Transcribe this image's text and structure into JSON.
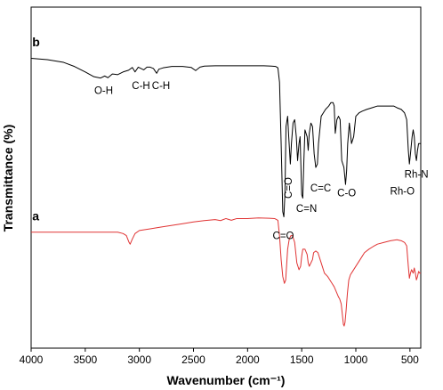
{
  "chart_data": {
    "type": "line",
    "title": "",
    "xlabel": "Wavenumber (cm⁻¹)",
    "ylabel": "Transmittance (%)",
    "xlim": [
      4000,
      400
    ],
    "x_reversed": true,
    "x_ticks": [
      4000,
      3500,
      3000,
      2500,
      2000,
      1500,
      1000,
      500
    ],
    "ylim": [
      0,
      100
    ],
    "y_ticks_shown": false,
    "grid": false,
    "legend": "none",
    "series": [
      {
        "name": "b",
        "color": "#000000",
        "points": [
          [
            4000,
            85
          ],
          [
            3850,
            84.6
          ],
          [
            3700,
            83.8
          ],
          [
            3600,
            82.6
          ],
          [
            3500,
            81
          ],
          [
            3420,
            79.6
          ],
          [
            3360,
            79.2
          ],
          [
            3320,
            79.8
          ],
          [
            3290,
            79.3
          ],
          [
            3250,
            80.4
          ],
          [
            3200,
            80.2
          ],
          [
            3150,
            81
          ],
          [
            3100,
            81.5
          ],
          [
            3065,
            82.3
          ],
          [
            3040,
            81
          ],
          [
            3010,
            82.4
          ],
          [
            2960,
            81.6
          ],
          [
            2930,
            82.4
          ],
          [
            2900,
            82.4
          ],
          [
            2870,
            82
          ],
          [
            2840,
            80.6
          ],
          [
            2820,
            81.8
          ],
          [
            2780,
            82.2
          ],
          [
            2700,
            82.6
          ],
          [
            2600,
            82.6
          ],
          [
            2520,
            82.3
          ],
          [
            2480,
            81.4
          ],
          [
            2440,
            82.4
          ],
          [
            2400,
            82.7
          ],
          [
            2300,
            82.8
          ],
          [
            2200,
            82.8
          ],
          [
            2100,
            82.8
          ],
          [
            2000,
            82.8
          ],
          [
            1900,
            82.8
          ],
          [
            1850,
            82.8
          ],
          [
            1780,
            82.7
          ],
          [
            1740,
            82.6
          ],
          [
            1720,
            82.2
          ],
          [
            1705,
            78
          ],
          [
            1690,
            60
          ],
          [
            1675,
            40
          ],
          [
            1665,
            38.5
          ],
          [
            1655,
            45
          ],
          [
            1645,
            65
          ],
          [
            1630,
            68
          ],
          [
            1620,
            62
          ],
          [
            1605,
            54
          ],
          [
            1595,
            60
          ],
          [
            1580,
            66
          ],
          [
            1565,
            67
          ],
          [
            1550,
            62
          ],
          [
            1538,
            55
          ],
          [
            1525,
            60
          ],
          [
            1515,
            62
          ],
          [
            1500,
            45
          ],
          [
            1490,
            44
          ],
          [
            1480,
            55
          ],
          [
            1470,
            64
          ],
          [
            1450,
            62
          ],
          [
            1440,
            58
          ],
          [
            1430,
            63
          ],
          [
            1415,
            66
          ],
          [
            1400,
            65
          ],
          [
            1385,
            57
          ],
          [
            1370,
            53
          ],
          [
            1355,
            54
          ],
          [
            1345,
            60
          ],
          [
            1320,
            68
          ],
          [
            1280,
            70
          ],
          [
            1250,
            71
          ],
          [
            1230,
            72
          ],
          [
            1210,
            72
          ],
          [
            1200,
            71
          ],
          [
            1190,
            63
          ],
          [
            1175,
            67
          ],
          [
            1160,
            68
          ],
          [
            1145,
            67
          ],
          [
            1130,
            55
          ],
          [
            1110,
            53
          ],
          [
            1095,
            48
          ],
          [
            1085,
            52
          ],
          [
            1075,
            60
          ],
          [
            1060,
            66
          ],
          [
            1040,
            60
          ],
          [
            1020,
            62
          ],
          [
            1000,
            68
          ],
          [
            970,
            69
          ],
          [
            940,
            69.5
          ],
          [
            900,
            70
          ],
          [
            850,
            70.5
          ],
          [
            800,
            71
          ],
          [
            750,
            71
          ],
          [
            700,
            71
          ],
          [
            650,
            71
          ],
          [
            620,
            70.5
          ],
          [
            580,
            70
          ],
          [
            550,
            69
          ],
          [
            530,
            67
          ],
          [
            515,
            58
          ],
          [
            505,
            54
          ],
          [
            495,
            57
          ],
          [
            480,
            62
          ],
          [
            470,
            64
          ],
          [
            460,
            62
          ],
          [
            450,
            57
          ],
          [
            440,
            55
          ],
          [
            430,
            58
          ],
          [
            420,
            60
          ],
          [
            400,
            60
          ]
        ]
      },
      {
        "name": "a",
        "color": "#e03333",
        "points": [
          [
            4000,
            34
          ],
          [
            3800,
            34
          ],
          [
            3600,
            34
          ],
          [
            3500,
            34
          ],
          [
            3400,
            34
          ],
          [
            3300,
            34
          ],
          [
            3200,
            34
          ],
          [
            3150,
            33.6
          ],
          [
            3120,
            33
          ],
          [
            3095,
            31
          ],
          [
            3085,
            30.5
          ],
          [
            3065,
            32
          ],
          [
            3040,
            33.6
          ],
          [
            3000,
            34.5
          ],
          [
            2900,
            35
          ],
          [
            2800,
            35.5
          ],
          [
            2700,
            36
          ],
          [
            2600,
            36.5
          ],
          [
            2500,
            37
          ],
          [
            2400,
            37.4
          ],
          [
            2300,
            37.7
          ],
          [
            2250,
            37.4
          ],
          [
            2200,
            38
          ],
          [
            2150,
            37.5
          ],
          [
            2100,
            38
          ],
          [
            2000,
            38
          ],
          [
            1900,
            38.2
          ],
          [
            1800,
            38.1
          ],
          [
            1750,
            38
          ],
          [
            1720,
            37.5
          ],
          [
            1705,
            33
          ],
          [
            1690,
            26
          ],
          [
            1675,
            21
          ],
          [
            1660,
            19
          ],
          [
            1648,
            20
          ],
          [
            1640,
            24
          ],
          [
            1630,
            29
          ],
          [
            1615,
            32
          ],
          [
            1600,
            33
          ],
          [
            1585,
            33
          ],
          [
            1565,
            31
          ],
          [
            1545,
            25
          ],
          [
            1525,
            23
          ],
          [
            1510,
            24
          ],
          [
            1500,
            27
          ],
          [
            1490,
            29
          ],
          [
            1470,
            29
          ],
          [
            1450,
            27.5
          ],
          [
            1440,
            25
          ],
          [
            1430,
            24
          ],
          [
            1415,
            25
          ],
          [
            1400,
            26
          ],
          [
            1390,
            28
          ],
          [
            1370,
            28.5
          ],
          [
            1350,
            28
          ],
          [
            1330,
            26
          ],
          [
            1310,
            24
          ],
          [
            1290,
            22
          ],
          [
            1260,
            21
          ],
          [
            1240,
            20
          ],
          [
            1220,
            19
          ],
          [
            1200,
            18
          ],
          [
            1180,
            16.5
          ],
          [
            1160,
            15
          ],
          [
            1150,
            14.5
          ],
          [
            1135,
            13
          ],
          [
            1125,
            10
          ],
          [
            1115,
            7
          ],
          [
            1108,
            6.5
          ],
          [
            1100,
            7.5
          ],
          [
            1090,
            11
          ],
          [
            1078,
            16
          ],
          [
            1065,
            20
          ],
          [
            1050,
            21.5
          ],
          [
            1030,
            22.5
          ],
          [
            1000,
            24
          ],
          [
            960,
            26
          ],
          [
            920,
            28
          ],
          [
            880,
            29
          ],
          [
            840,
            29.8
          ],
          [
            800,
            30.5
          ],
          [
            740,
            31
          ],
          [
            680,
            31.5
          ],
          [
            620,
            31.8
          ],
          [
            580,
            31.5
          ],
          [
            550,
            31
          ],
          [
            530,
            30
          ],
          [
            515,
            24
          ],
          [
            505,
            20.5
          ],
          [
            495,
            22
          ],
          [
            485,
            23
          ],
          [
            470,
            22
          ],
          [
            460,
            23.5
          ],
          [
            450,
            22
          ],
          [
            440,
            20
          ],
          [
            430,
            21
          ],
          [
            420,
            22.5
          ],
          [
            410,
            22
          ],
          [
            400,
            22
          ]
        ]
      }
    ],
    "annotations": [
      {
        "text": "O-H",
        "x": 3330,
        "y": 74.5,
        "rotate": 0
      },
      {
        "text": "C-H",
        "x": 2985,
        "y": 76,
        "rotate": 0
      },
      {
        "text": "C-H",
        "x": 2800,
        "y": 76,
        "rotate": 0
      },
      {
        "text": "C=O",
        "x": 1670,
        "y": 32,
        "rotate": 0
      },
      {
        "text": "C=O",
        "x": 1592,
        "y": 47,
        "rotate": -90
      },
      {
        "text": "C=N",
        "x": 1455,
        "y": 40,
        "rotate": 0
      },
      {
        "text": "C=C",
        "x": 1325,
        "y": 46,
        "rotate": 0
      },
      {
        "text": "C-O",
        "x": 1085,
        "y": 44.5,
        "rotate": 0
      },
      {
        "text": "Rh-O",
        "x": 570,
        "y": 45,
        "rotate": 0
      },
      {
        "text": "Rh-N",
        "x": 440,
        "y": 50,
        "rotate": 0
      }
    ],
    "series_labels": [
      {
        "text": "b",
        "x": 3990,
        "y": 88.5
      },
      {
        "text": "a",
        "x": 3990,
        "y": 37.5
      }
    ]
  }
}
